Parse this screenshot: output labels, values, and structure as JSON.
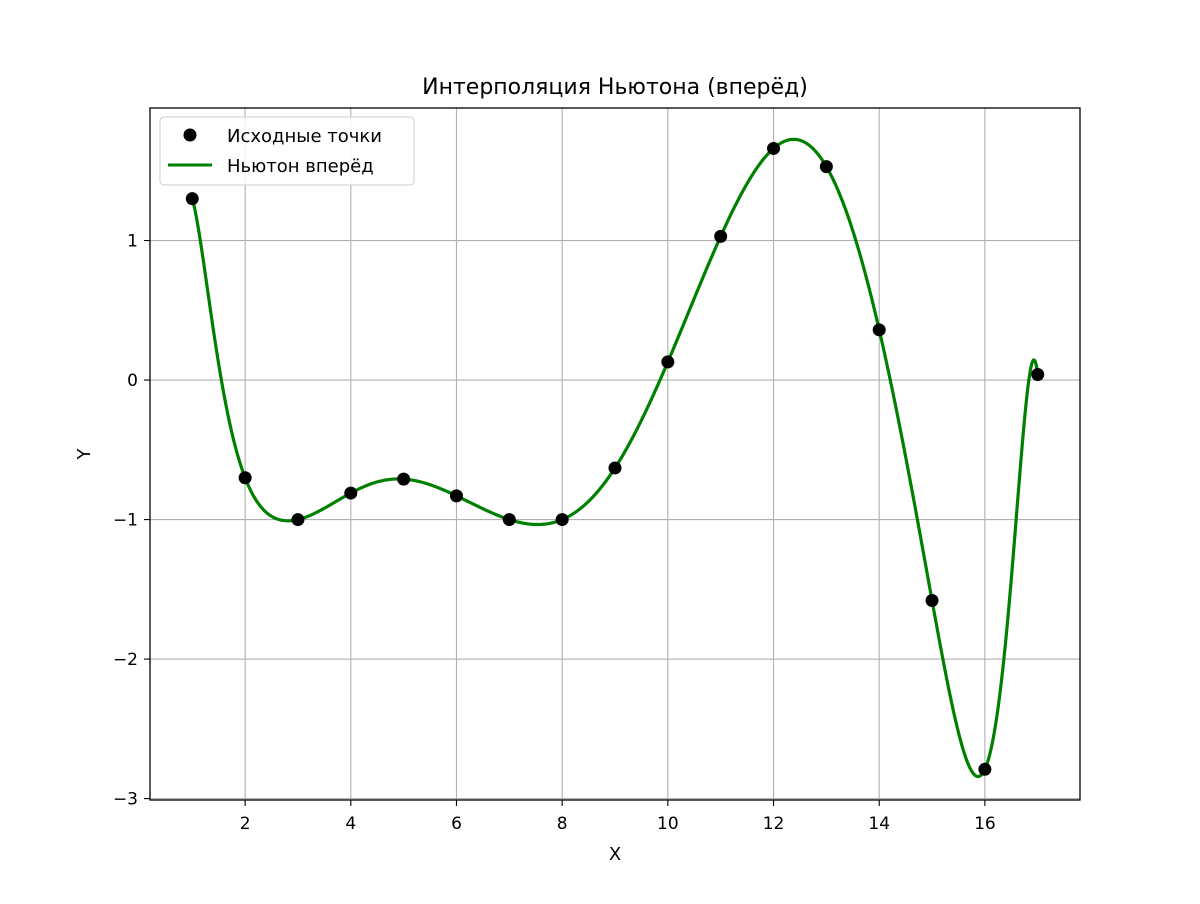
{
  "chart_data": {
    "type": "line",
    "title": "Интерполяция Ньютона (вперёд)",
    "xlabel": "X",
    "ylabel": "Y",
    "xlim": [
      0.2,
      17.8
    ],
    "ylim": [
      -3.01,
      1.95
    ],
    "xticks": [
      2,
      4,
      6,
      8,
      10,
      12,
      14,
      16
    ],
    "xtick_labels": [
      "2",
      "4",
      "6",
      "8",
      "10",
      "12",
      "14",
      "16"
    ],
    "yticks": [
      -3,
      -2,
      -1,
      0,
      1
    ],
    "ytick_labels": [
      "−3",
      "−2",
      "−1",
      "0",
      "1"
    ],
    "grid": true,
    "legend_position": "top-left",
    "series": [
      {
        "name": "Исходные точки",
        "kind": "scatter",
        "color": "#000000",
        "x": [
          1,
          2,
          3,
          4,
          5,
          6,
          7,
          8,
          9,
          10,
          11,
          12,
          13,
          14,
          15,
          16,
          17
        ],
        "y": [
          1.3,
          -0.7,
          -1.0,
          -0.81,
          -0.71,
          -0.83,
          -1.0,
          -1.0,
          -0.63,
          0.13,
          1.03,
          1.66,
          1.53,
          0.36,
          -1.58,
          -2.79,
          0.04
        ]
      },
      {
        "name": "Ньютон вперёд",
        "kind": "line",
        "color": "#008000"
      }
    ]
  }
}
